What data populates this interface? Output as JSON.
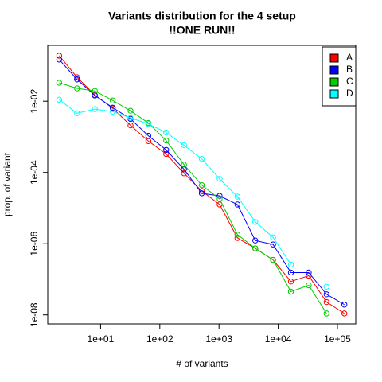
{
  "chart_data": {
    "type": "line",
    "title": "Variants distribution for the 4 setup",
    "subtitle": "!!ONE RUN!!",
    "x_label": "# of variants",
    "y_label": "prop. of variant",
    "x": [
      2,
      4,
      8,
      16,
      32,
      64,
      128,
      256,
      512,
      1024,
      2048,
      4096,
      8192,
      16384,
      32768,
      65536,
      131072
    ],
    "series": [
      {
        "name": "A",
        "color": "#ff0000",
        "values": [
          0.19,
          0.047,
          0.015,
          0.0063,
          0.0021,
          0.00076,
          0.00033,
          9.5e-05,
          3e-05,
          1.26e-05,
          1.45e-06,
          7.4e-07,
          3.5e-07,
          8.7e-08,
          1.26e-07,
          2.3e-08,
          1.1e-08
        ]
      },
      {
        "name": "B",
        "color": "#0000ff",
        "values": [
          0.148,
          0.041,
          0.0145,
          0.0066,
          0.0032,
          0.00107,
          0.00043,
          0.000123,
          2.6e-05,
          2.2e-05,
          1.26e-05,
          1.23e-06,
          9.5e-07,
          1.55e-07,
          1.55e-07,
          3.8e-08,
          1.95e-08
        ]
      },
      {
        "name": "C",
        "color": "#00cd00",
        "values": [
          0.033,
          0.023,
          0.0195,
          0.0105,
          0.0054,
          0.00245,
          0.00079,
          0.000166,
          4.4e-05,
          1.8e-05,
          1.8e-06,
          7.4e-07,
          3.5e-07,
          4.5e-08,
          6.8e-08,
          1.1e-08,
          null
        ]
      },
      {
        "name": "D",
        "color": "#00ffff",
        "values": [
          0.011,
          0.0046,
          0.006,
          0.0051,
          0.0034,
          0.0023,
          0.00132,
          0.00058,
          0.00024,
          6.6e-05,
          2.1e-05,
          4.1e-06,
          1.5e-06,
          2.6e-07,
          null,
          6.2e-08,
          null
        ]
      }
    ],
    "xscale": "log",
    "yscale": "log",
    "xlim": [
      1.28,
      204000
    ],
    "ylim": [
      5.6e-09,
      0.37
    ],
    "xticks": [
      {
        "value": 10,
        "label": "1e+01"
      },
      {
        "value": 100,
        "label": "1e+02"
      },
      {
        "value": 1000,
        "label": "1e+03"
      },
      {
        "value": 10000,
        "label": "1e+04"
      },
      {
        "value": 100000,
        "label": "1e+05"
      }
    ],
    "yticks": [
      {
        "value": 1e-08,
        "label": "1e-08"
      },
      {
        "value": 1e-06,
        "label": "1e-06"
      },
      {
        "value": 0.0001,
        "label": "1e-04"
      },
      {
        "value": 0.01,
        "label": "1e-02"
      }
    ],
    "legend": "top-right"
  }
}
